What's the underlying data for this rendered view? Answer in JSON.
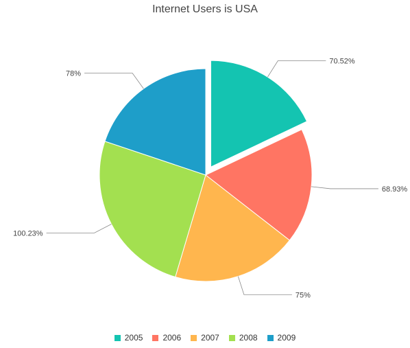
{
  "chart_data": {
    "type": "pie",
    "title": "Internet Users is USA",
    "categories": [
      "2005",
      "2006",
      "2007",
      "2008",
      "2009"
    ],
    "values": [
      70.52,
      68.93,
      75,
      100.23,
      78
    ],
    "labels": [
      "70.52%",
      "68.93%",
      "75%",
      "100.23%",
      "78%"
    ],
    "colors": [
      "#14c4b1",
      "#ff7563",
      "#ffb64e",
      "#a3e050",
      "#1e9ec9"
    ],
    "exploded": [
      "2005"
    ],
    "legend": "bottom"
  }
}
